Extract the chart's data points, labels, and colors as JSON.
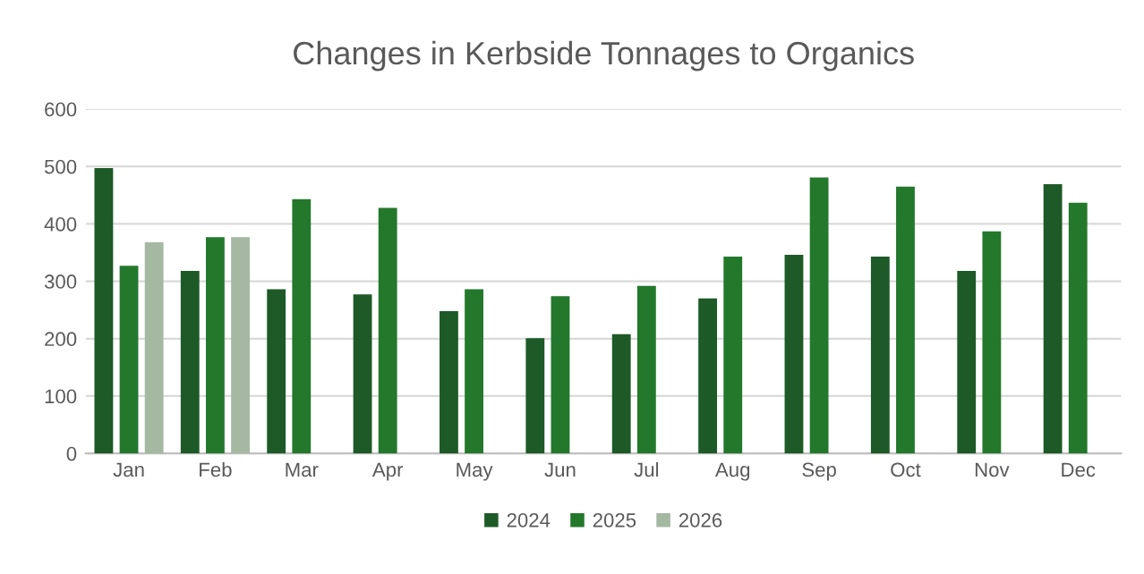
{
  "chart_data": {
    "type": "bar",
    "title": "Changes in Kerbside Tonnages to Organics",
    "categories": [
      "Jan",
      "Feb",
      "Mar",
      "Apr",
      "May",
      "Jun",
      "Jul",
      "Aug",
      "Sep",
      "Oct",
      "Nov",
      "Dec"
    ],
    "series": [
      {
        "name": "2024",
        "color": "#1d5a27",
        "values": [
          497,
          318,
          286,
          277,
          248,
          201,
          208,
          270,
          346,
          343,
          318,
          469
        ]
      },
      {
        "name": "2025",
        "color": "#23782c",
        "values": [
          327,
          377,
          443,
          428,
          286,
          274,
          292,
          343,
          481,
          465,
          387,
          437
        ]
      },
      {
        "name": "2026",
        "color": "#a5b8a2",
        "values": [
          368,
          377,
          null,
          null,
          null,
          null,
          null,
          null,
          null,
          null,
          null,
          null
        ]
      }
    ],
    "ylim": [
      0,
      600
    ],
    "yticks": [
      0,
      100,
      200,
      300,
      400,
      500,
      600
    ],
    "grid": "y",
    "legend": "bottom"
  }
}
